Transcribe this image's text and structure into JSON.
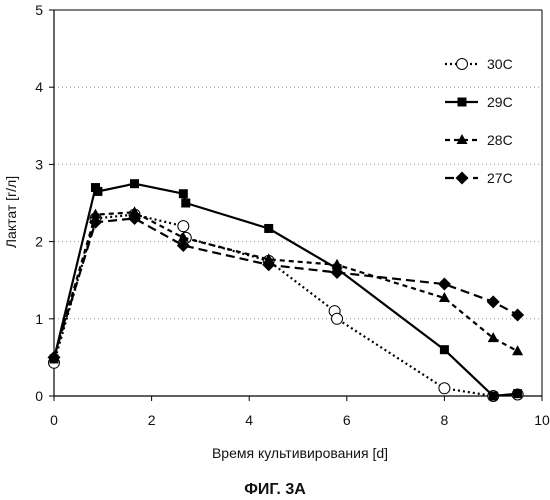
{
  "figure_label": "ФИГ. 3А",
  "chart_data": {
    "type": "line",
    "xlabel": "Время культивирования [d]",
    "ylabel": "Лактат [г/л]",
    "xlim": [
      0,
      10
    ],
    "ylim": [
      0,
      5
    ],
    "x_ticks": [
      "0",
      "2",
      "4",
      "6",
      "8",
      "10"
    ],
    "y_ticks": [
      "0",
      "1",
      "2",
      "3",
      "4",
      "5"
    ],
    "grid": "horizontal dotted",
    "legend_position": "right",
    "series": [
      {
        "name": "30C",
        "marker": "circle-open",
        "line_style": "dotted",
        "points": [
          [
            0,
            0.43
          ],
          [
            0.85,
            2.3
          ],
          [
            1.65,
            2.35
          ],
          [
            2.65,
            2.2
          ],
          [
            2.7,
            2.05
          ],
          [
            4.4,
            1.75
          ],
          [
            5.75,
            1.1
          ],
          [
            5.8,
            1.0
          ],
          [
            8.0,
            0.1
          ],
          [
            9.0,
            0.0
          ],
          [
            9.5,
            0.02
          ]
        ]
      },
      {
        "name": "29C",
        "marker": "square",
        "line_style": "solid",
        "points": [
          [
            0,
            0.48
          ],
          [
            0.85,
            2.7
          ],
          [
            0.9,
            2.65
          ],
          [
            1.65,
            2.75
          ],
          [
            2.65,
            2.62
          ],
          [
            2.7,
            2.5
          ],
          [
            4.4,
            2.17
          ],
          [
            5.8,
            1.65
          ],
          [
            8.0,
            0.6
          ],
          [
            9.0,
            0.0
          ],
          [
            9.5,
            0.03
          ]
        ]
      },
      {
        "name": "28C",
        "marker": "triangle",
        "line_style": "dashed",
        "points": [
          [
            0,
            0.5
          ],
          [
            0.85,
            2.35
          ],
          [
            1.65,
            2.38
          ],
          [
            2.65,
            2.05
          ],
          [
            4.4,
            1.77
          ],
          [
            5.8,
            1.7
          ],
          [
            8.0,
            1.27
          ],
          [
            9.0,
            0.75
          ],
          [
            9.5,
            0.58
          ]
        ]
      },
      {
        "name": "27C",
        "marker": "diamond",
        "line_style": "long-dash",
        "points": [
          [
            0,
            0.5
          ],
          [
            0.85,
            2.25
          ],
          [
            1.65,
            2.3
          ],
          [
            2.65,
            1.95
          ],
          [
            4.4,
            1.7
          ],
          [
            5.8,
            1.6
          ],
          [
            8.0,
            1.45
          ],
          [
            9.0,
            1.22
          ],
          [
            9.5,
            1.05
          ]
        ]
      }
    ]
  }
}
